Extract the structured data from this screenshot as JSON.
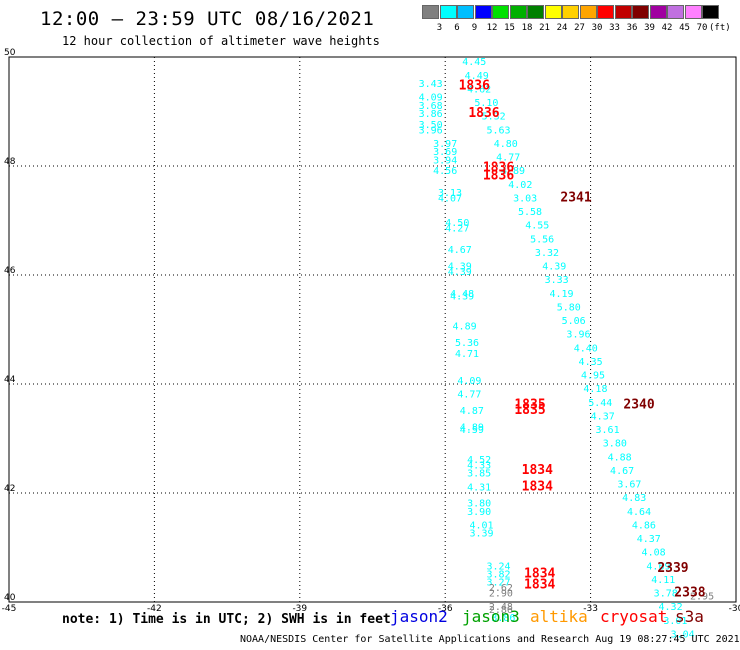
{
  "title": "12:00 – 23:59 UTC 08/16/2021",
  "subtitle": "12 hour collection of altimeter wave heights",
  "color_scale": {
    "colors": [
      "#808080",
      "#00ffff",
      "#00bfff",
      "#0000ff",
      "#00e000",
      "#00b000",
      "#008000",
      "#ffff00",
      "#ffd000",
      "#ffa500",
      "#ff0000",
      "#c00000",
      "#800000",
      "#a000a0",
      "#c070e0",
      "#ff80ff",
      "#000000"
    ],
    "labels": [
      "3",
      "6",
      "9",
      "12",
      "15",
      "18",
      "21",
      "24",
      "27",
      "30",
      "33",
      "36",
      "39",
      "42",
      "45",
      "70"
    ],
    "unit": "(ft)"
  },
  "note": "note: 1) Time is in UTC; 2) SWH is in feet",
  "satellites": [
    {
      "name": "jason2",
      "color": "#0000e0"
    },
    {
      "name": "jason3",
      "color": "#00a000"
    },
    {
      "name": "altika",
      "color": "#ff9900"
    },
    {
      "name": "cryosat",
      "color": "#ff0000"
    },
    {
      "name": "s3a",
      "color": "#800000"
    }
  ],
  "credit": "NOAA/NESDIS Center for Satellite Applications and Research    Aug 19 08:27:45 UTC 2021",
  "chart_data": {
    "type": "scatter",
    "xlim": [
      -45,
      -30
    ],
    "ylim": [
      40,
      50
    ],
    "xticks": [
      "-45",
      "-42",
      "-39",
      "-36",
      "-33",
      "-30"
    ],
    "yticks": [
      "50",
      "48",
      "46",
      "44",
      "42",
      "40"
    ],
    "grid": true,
    "series": [
      {
        "color": "#00ffff",
        "points": [
          {
            "x": -35.4,
            "y": 49.85,
            "label": "4.45"
          },
          {
            "x": -35.35,
            "y": 49.6,
            "label": "4.49"
          },
          {
            "x": -35.3,
            "y": 49.35,
            "label": "4.62"
          },
          {
            "x": -35.15,
            "y": 49.1,
            "label": "5.10"
          },
          {
            "x": -35.0,
            "y": 48.85,
            "label": "5.32"
          },
          {
            "x": -34.9,
            "y": 48.6,
            "label": "5.63"
          },
          {
            "x": -34.75,
            "y": 48.35,
            "label": "4.80"
          },
          {
            "x": -34.7,
            "y": 48.1,
            "label": "4.77"
          },
          {
            "x": -34.6,
            "y": 47.85,
            "label": "4.89"
          },
          {
            "x": -34.45,
            "y": 47.6,
            "label": "4.02"
          },
          {
            "x": -34.35,
            "y": 47.35,
            "label": "3.03"
          },
          {
            "x": -34.25,
            "y": 47.1,
            "label": "5.58"
          },
          {
            "x": -34.1,
            "y": 46.85,
            "label": "4.55"
          },
          {
            "x": -34.0,
            "y": 46.6,
            "label": "5.56"
          },
          {
            "x": -33.9,
            "y": 46.35,
            "label": "3.32"
          },
          {
            "x": -33.75,
            "y": 46.1,
            "label": "4.39"
          },
          {
            "x": -33.7,
            "y": 45.85,
            "label": "3.33"
          },
          {
            "x": -33.6,
            "y": 45.6,
            "label": "4.19"
          },
          {
            "x": -33.45,
            "y": 45.35,
            "label": "5.80"
          },
          {
            "x": -33.35,
            "y": 45.1,
            "label": "5.06"
          },
          {
            "x": -33.25,
            "y": 44.85,
            "label": "3.96"
          },
          {
            "x": -33.1,
            "y": 44.6,
            "label": "4.40"
          },
          {
            "x": -33.0,
            "y": 44.35,
            "label": "4.35"
          },
          {
            "x": -32.95,
            "y": 44.1,
            "label": "4.95"
          },
          {
            "x": -32.9,
            "y": 43.85,
            "label": "4.18"
          },
          {
            "x": -32.8,
            "y": 43.6,
            "label": "5.44"
          },
          {
            "x": -32.75,
            "y": 43.35,
            "label": "4.37"
          },
          {
            "x": -32.65,
            "y": 43.1,
            "label": "3.61"
          },
          {
            "x": -32.5,
            "y": 42.85,
            "label": "3.80"
          },
          {
            "x": -32.4,
            "y": 42.6,
            "label": "4.88"
          },
          {
            "x": -32.35,
            "y": 42.35,
            "label": "4.67"
          },
          {
            "x": -32.2,
            "y": 42.1,
            "label": "3.67"
          },
          {
            "x": -32.1,
            "y": 41.85,
            "label": "4.83"
          },
          {
            "x": -32.0,
            "y": 41.6,
            "label": "4.64"
          },
          {
            "x": -31.9,
            "y": 41.35,
            "label": "4.86"
          },
          {
            "x": -31.8,
            "y": 41.1,
            "label": "4.37"
          },
          {
            "x": -31.7,
            "y": 40.85,
            "label": "4.08"
          },
          {
            "x": -31.6,
            "y": 40.6,
            "label": "4.69"
          },
          {
            "x": -31.5,
            "y": 40.35,
            "label": "4.11"
          },
          {
            "x": -31.45,
            "y": 40.1,
            "label": "3.78"
          },
          {
            "x": -31.35,
            "y": 39.85,
            "label": "4.32"
          },
          {
            "x": -31.25,
            "y": 39.6,
            "label": "3.01"
          },
          {
            "x": -31.1,
            "y": 39.35,
            "label": "3.04"
          },
          {
            "x": -36.3,
            "y": 49.45,
            "label": "3.43"
          },
          {
            "x": -36.3,
            "y": 49.2,
            "label": "4.09"
          },
          {
            "x": -36.3,
            "y": 49.05,
            "label": "3.68"
          },
          {
            "x": -36.3,
            "y": 48.9,
            "label": "3.86"
          },
          {
            "x": -36.3,
            "y": 48.7,
            "label": "3.50"
          },
          {
            "x": -36.3,
            "y": 48.6,
            "label": "3.96"
          },
          {
            "x": -36.0,
            "y": 48.35,
            "label": "3.97"
          },
          {
            "x": -36.0,
            "y": 48.2,
            "label": "3.69"
          },
          {
            "x": -36.0,
            "y": 48.05,
            "label": "3.94"
          },
          {
            "x": -36.0,
            "y": 47.85,
            "label": "4.56"
          },
          {
            "x": -35.9,
            "y": 47.45,
            "label": "3.13"
          },
          {
            "x": -35.9,
            "y": 47.35,
            "label": "4.07"
          },
          {
            "x": -35.75,
            "y": 46.9,
            "label": "4.50"
          },
          {
            "x": -35.75,
            "y": 46.8,
            "label": "4.27"
          },
          {
            "x": -35.7,
            "y": 46.4,
            "label": "4.67"
          },
          {
            "x": -35.7,
            "y": 46.1,
            "label": "4.39"
          },
          {
            "x": -35.7,
            "y": 46.0,
            "label": "4.39"
          },
          {
            "x": -35.65,
            "y": 45.6,
            "label": "4.48"
          },
          {
            "x": -35.65,
            "y": 45.55,
            "label": "4.39"
          },
          {
            "x": -35.6,
            "y": 45.0,
            "label": "4.89"
          },
          {
            "x": -35.55,
            "y": 44.7,
            "label": "5.36"
          },
          {
            "x": -35.55,
            "y": 44.5,
            "label": "4.71"
          },
          {
            "x": -35.5,
            "y": 44.0,
            "label": "4.09"
          },
          {
            "x": -35.5,
            "y": 43.75,
            "label": "4.77"
          },
          {
            "x": -35.45,
            "y": 43.45,
            "label": "4.87"
          },
          {
            "x": -35.45,
            "y": 43.15,
            "label": "4.89"
          },
          {
            "x": -35.45,
            "y": 43.1,
            "label": "4.59"
          },
          {
            "x": -35.3,
            "y": 42.55,
            "label": "4.52"
          },
          {
            "x": -35.3,
            "y": 42.45,
            "label": "4.33"
          },
          {
            "x": -35.3,
            "y": 42.3,
            "label": "3.85"
          },
          {
            "x": -35.3,
            "y": 42.05,
            "label": "4.31"
          },
          {
            "x": -35.3,
            "y": 41.75,
            "label": "3.80"
          },
          {
            "x": -35.3,
            "y": 41.6,
            "label": "3.90"
          },
          {
            "x": -35.25,
            "y": 41.35,
            "label": "4.01"
          },
          {
            "x": -35.25,
            "y": 41.2,
            "label": "3.39"
          },
          {
            "x": -34.9,
            "y": 40.6,
            "label": "3.24"
          },
          {
            "x": -34.9,
            "y": 40.45,
            "label": "3.82"
          },
          {
            "x": -34.9,
            "y": 40.3,
            "label": "3.27"
          },
          {
            "x": -34.8,
            "y": 39.65,
            "label": "3.86"
          }
        ]
      },
      {
        "color": "#808080",
        "points": [
          {
            "x": -34.85,
            "y": 40.2,
            "label": "2.62"
          },
          {
            "x": -34.85,
            "y": 40.1,
            "label": "2.90"
          },
          {
            "x": -34.85,
            "y": 39.85,
            "label": "2.48"
          },
          {
            "x": -34.85,
            "y": 39.8,
            "label": "2.86"
          },
          {
            "x": -30.7,
            "y": 40.05,
            "label": "2.95"
          }
        ]
      },
      {
        "color": "#ff0000",
        "points": [
          {
            "x": -35.4,
            "y": 49.4,
            "label": "1836"
          },
          {
            "x": -35.2,
            "y": 48.9,
            "label": "1836"
          },
          {
            "x": -34.9,
            "y": 47.9,
            "label": "1836"
          },
          {
            "x": -34.9,
            "y": 47.75,
            "label": "1836"
          },
          {
            "x": -34.25,
            "y": 43.55,
            "label": "1835"
          },
          {
            "x": -34.25,
            "y": 43.45,
            "label": "1835"
          },
          {
            "x": -34.1,
            "y": 42.35,
            "label": "1834"
          },
          {
            "x": -34.1,
            "y": 42.05,
            "label": "1834"
          },
          {
            "x": -34.05,
            "y": 40.45,
            "label": "1834"
          },
          {
            "x": -34.05,
            "y": 40.25,
            "label": "1834"
          }
        ]
      },
      {
        "color": "#800000",
        "points": [
          {
            "x": -33.3,
            "y": 47.35,
            "label": "2341"
          },
          {
            "x": -32.0,
            "y": 43.55,
            "label": "2340"
          },
          {
            "x": -31.3,
            "y": 40.55,
            "label": "2339"
          },
          {
            "x": -30.95,
            "y": 40.1,
            "label": "2338"
          }
        ]
      }
    ]
  }
}
